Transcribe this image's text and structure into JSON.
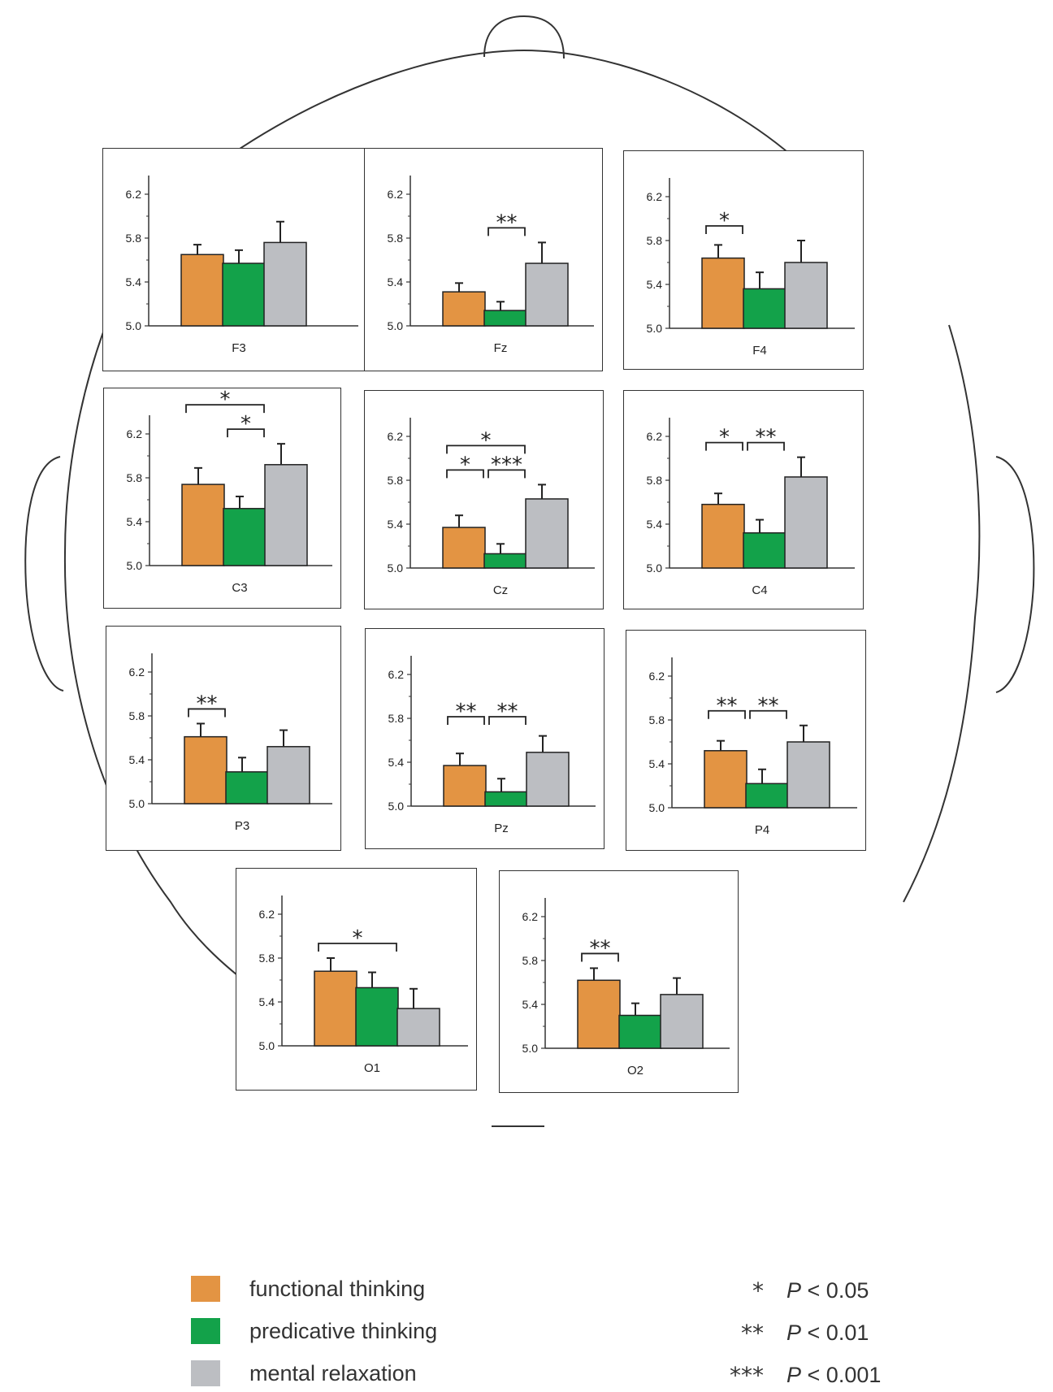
{
  "chart_data": {
    "type": "bar",
    "categories": [
      "functional thinking",
      "predicative thinking",
      "mental relaxation"
    ],
    "ylim": [
      5.0,
      6.4
    ],
    "yticks": [
      "5.0",
      "5.4",
      "5.8",
      "6.2"
    ],
    "colors": {
      "functional thinking": "#E39443",
      "predicative thinking": "#13A24A",
      "mental relaxation": "#BCBEC2"
    },
    "panels": [
      {
        "name": "F3",
        "values": [
          5.65,
          5.57,
          5.76
        ],
        "errors": [
          0.09,
          0.12,
          0.19
        ],
        "sig": []
      },
      {
        "name": "Fz",
        "values": [
          5.31,
          5.14,
          5.57
        ],
        "errors": [
          0.08,
          0.08,
          0.19
        ],
        "sig": [
          {
            "from": 1,
            "to": 2,
            "stars": "**",
            "level": 0
          }
        ]
      },
      {
        "name": "F4",
        "values": [
          5.64,
          5.36,
          5.6
        ],
        "errors": [
          0.12,
          0.15,
          0.2
        ],
        "sig": [
          {
            "from": 0,
            "to": 1,
            "stars": "*",
            "level": 0
          }
        ]
      },
      {
        "name": "C3",
        "values": [
          5.74,
          5.52,
          5.92
        ],
        "errors": [
          0.15,
          0.11,
          0.19
        ],
        "sig": [
          {
            "from": 1,
            "to": 2,
            "stars": "*",
            "level": 0
          },
          {
            "from": 0,
            "to": 2,
            "stars": "*",
            "level": 1
          }
        ]
      },
      {
        "name": "Cz",
        "values": [
          5.37,
          5.13,
          5.63
        ],
        "errors": [
          0.11,
          0.09,
          0.13
        ],
        "sig": [
          {
            "from": 0,
            "to": 1,
            "stars": "*",
            "level": 0
          },
          {
            "from": 1,
            "to": 2,
            "stars": "***",
            "level": 0
          },
          {
            "from": 0,
            "to": 2,
            "stars": "*",
            "level": 1
          }
        ]
      },
      {
        "name": "C4",
        "values": [
          5.58,
          5.32,
          5.83
        ],
        "errors": [
          0.1,
          0.12,
          0.18
        ],
        "sig": [
          {
            "from": 0,
            "to": 1,
            "stars": "*",
            "level": 0
          },
          {
            "from": 1,
            "to": 2,
            "stars": "**",
            "level": 0
          }
        ]
      },
      {
        "name": "P3",
        "values": [
          5.61,
          5.29,
          5.52
        ],
        "errors": [
          0.12,
          0.13,
          0.15
        ],
        "sig": [
          {
            "from": 0,
            "to": 1,
            "stars": "**",
            "level": 0
          }
        ]
      },
      {
        "name": "Pz",
        "values": [
          5.37,
          5.13,
          5.49
        ],
        "errors": [
          0.11,
          0.12,
          0.15
        ],
        "sig": [
          {
            "from": 0,
            "to": 1,
            "stars": "**",
            "level": 0
          },
          {
            "from": 1,
            "to": 2,
            "stars": "**",
            "level": 0
          }
        ]
      },
      {
        "name": "P4",
        "values": [
          5.52,
          5.22,
          5.6
        ],
        "errors": [
          0.09,
          0.13,
          0.15
        ],
        "sig": [
          {
            "from": 0,
            "to": 1,
            "stars": "**",
            "level": 0
          },
          {
            "from": 1,
            "to": 2,
            "stars": "**",
            "level": 0
          }
        ]
      },
      {
        "name": "O1",
        "values": [
          5.68,
          5.53,
          5.34
        ],
        "errors": [
          0.12,
          0.14,
          0.18
        ],
        "sig": [
          {
            "from": 0,
            "to": 2,
            "stars": "*",
            "level": 0
          }
        ]
      },
      {
        "name": "O2",
        "values": [
          5.62,
          5.3,
          5.49
        ],
        "errors": [
          0.11,
          0.11,
          0.15
        ],
        "sig": [
          {
            "from": 0,
            "to": 1,
            "stars": "**",
            "level": 0
          }
        ]
      }
    ]
  },
  "legend": {
    "items": [
      {
        "label": "functional thinking",
        "color": "#E39443"
      },
      {
        "label": "predicative thinking",
        "color": "#13A24A"
      },
      {
        "label": "mental relaxation",
        "color": "#BCBEC2"
      }
    ],
    "significance": [
      {
        "stars": "*",
        "p_symbol": "P",
        "text": "< 0.05"
      },
      {
        "stars": "**",
        "p_symbol": "P",
        "text": "< 0.01"
      },
      {
        "stars": "***",
        "p_symbol": "P",
        "text": "< 0.001"
      }
    ]
  }
}
